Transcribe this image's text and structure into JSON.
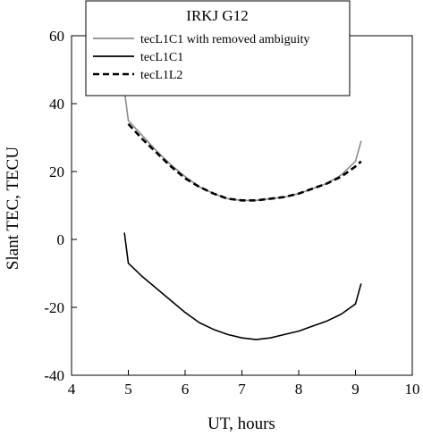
{
  "chart_data": {
    "type": "line",
    "title": "IRKJ G12",
    "xlabel": "UT, hours",
    "ylabel": "Slant TEC, TECU",
    "xlim": [
      4,
      10
    ],
    "ylim": [
      -40,
      60
    ],
    "xticks": [
      4,
      5,
      6,
      7,
      8,
      9,
      10
    ],
    "yticks": [
      -40,
      -20,
      0,
      20,
      40,
      60
    ],
    "xtick_labels": [
      "4",
      "5",
      "6",
      "7",
      "8",
      "9",
      "10"
    ],
    "ytick_labels": [
      "-40",
      "-20",
      "0",
      "20",
      "40",
      "60"
    ],
    "grid": false,
    "legend_position": "top-center",
    "series": [
      {
        "name": "tecL1C1 with removed ambiguity",
        "color": "#8c8c8c",
        "style": "solid",
        "x": [
          4.93,
          5.0,
          5.25,
          5.5,
          5.75,
          6.0,
          6.25,
          6.5,
          6.75,
          7.0,
          7.25,
          7.5,
          7.75,
          8.0,
          8.25,
          8.5,
          8.75,
          9.0,
          9.1
        ],
        "y": [
          44,
          35,
          30.5,
          26,
          22,
          18.5,
          15.5,
          13.5,
          12,
          11.5,
          11.5,
          12,
          12.5,
          13.5,
          15,
          16.5,
          19,
          23,
          29
        ]
      },
      {
        "name": "tecL1C1",
        "color": "#000000",
        "style": "solid",
        "x": [
          4.93,
          5.0,
          5.25,
          5.5,
          5.75,
          6.0,
          6.25,
          6.5,
          6.75,
          7.0,
          7.25,
          7.5,
          7.75,
          8.0,
          8.25,
          8.5,
          8.75,
          9.0,
          9.1
        ],
        "y": [
          2,
          -7,
          -11,
          -14.5,
          -18,
          -21.5,
          -24.5,
          -26.5,
          -28,
          -29,
          -29.5,
          -29,
          -28,
          -27,
          -25.5,
          -24,
          -22,
          -19,
          -13
        ]
      },
      {
        "name": "tecL1L2",
        "color": "#000000",
        "style": "dashed",
        "x": [
          5.0,
          5.25,
          5.5,
          5.75,
          6.0,
          6.25,
          6.5,
          6.75,
          7.0,
          7.25,
          7.5,
          7.75,
          8.0,
          8.25,
          8.5,
          8.75,
          9.0,
          9.1
        ],
        "y": [
          34,
          29.5,
          25.5,
          21.5,
          18,
          15.5,
          13.5,
          12,
          11.5,
          11.5,
          12,
          12.5,
          13.5,
          15,
          16.5,
          18.5,
          21.5,
          23
        ]
      }
    ]
  }
}
